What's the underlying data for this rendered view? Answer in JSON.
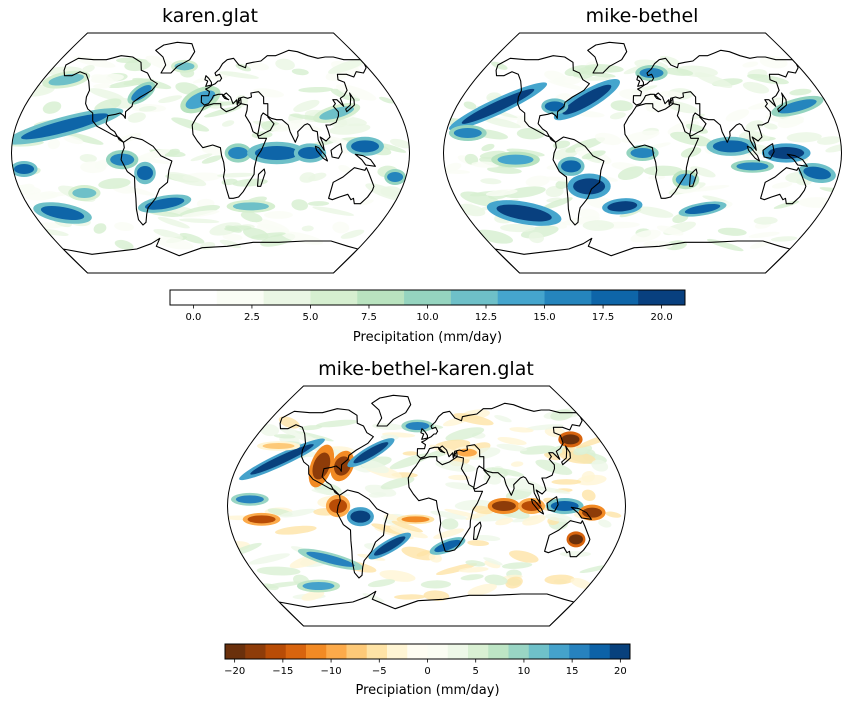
{
  "maps": [
    {
      "id": "top-left",
      "title": "karen.glat",
      "kind": "seq"
    },
    {
      "id": "top-right",
      "title": "mike-bethel",
      "kind": "seq"
    },
    {
      "id": "bottom",
      "title": "mike-bethel-karen.glat",
      "kind": "div"
    }
  ],
  "colorbars": [
    {
      "id": "seq",
      "label": "Precipitation (mm/day)",
      "range": [
        -1,
        21
      ],
      "ticks": [
        "0.0",
        "2.5",
        "5.0",
        "7.5",
        "10.0",
        "12.5",
        "15.0",
        "17.5",
        "20.0"
      ],
      "tick_values": [
        0,
        2.5,
        5,
        7.5,
        10,
        12.5,
        15,
        17.5,
        20
      ],
      "colors": [
        "#ffffff",
        "#fafdf5",
        "#eaf6e4",
        "#d6efd0",
        "#b9e3bf",
        "#95d4bf",
        "#6ec0c8",
        "#45a5cd",
        "#2585bd",
        "#0e65a8",
        "#08407f"
      ]
    },
    {
      "id": "div",
      "label": "Precipiation (mm/day)",
      "range": [
        -21,
        21
      ],
      "ticks": [
        "−20",
        "−15",
        "−10",
        "−5",
        "0",
        "5",
        "10",
        "15",
        "20"
      ],
      "tick_values": [
        -20,
        -15,
        -10,
        -5,
        0,
        5,
        10,
        15,
        20
      ],
      "colors": [
        "#6a300c",
        "#8e3c09",
        "#b84c06",
        "#d8640e",
        "#f28a24",
        "#fcaa4a",
        "#fdc978",
        "#fee3a6",
        "#fff5d4",
        "#fffdf2",
        "#fbfdf3",
        "#eef8e8",
        "#d9f0d3",
        "#bde5c5",
        "#99d5c4",
        "#6fc1c9",
        "#45a2cb",
        "#2782be",
        "#0d62a7",
        "#08417d"
      ]
    }
  ]
}
